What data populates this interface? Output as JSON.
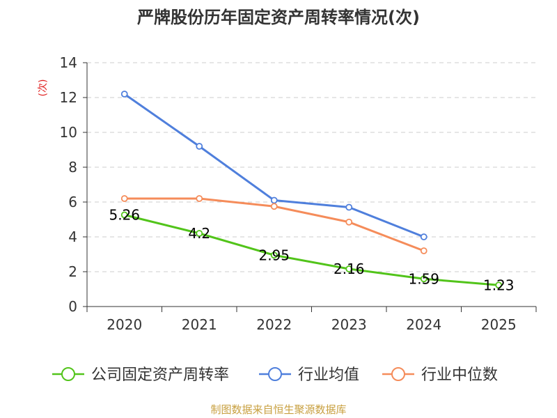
{
  "chart_data": {
    "type": "line",
    "title": "严牌股份历年固定资产周转率情况(次)",
    "ylabel": "(次)",
    "xlabel": "",
    "ylim": [
      0,
      14
    ],
    "yticks": [
      0,
      2,
      4,
      6,
      8,
      10,
      12,
      14
    ],
    "grid": true,
    "categories": [
      "2020",
      "2021",
      "2022",
      "2023",
      "2024",
      "2025"
    ],
    "series": [
      {
        "name": "公司固定资产周转率",
        "color": "#52c41a",
        "values": [
          5.26,
          4.2,
          2.95,
          2.16,
          1.59,
          1.23
        ],
        "labels": [
          "5.26",
          "4.2",
          "2.95",
          "2.16",
          "1.59",
          "1.23"
        ]
      },
      {
        "name": "行业均值",
        "color": "#4f7fdc",
        "values": [
          12.2,
          9.2,
          6.1,
          5.7,
          4.0,
          null
        ]
      },
      {
        "name": "行业中位数",
        "color": "#f58c5a",
        "values": [
          6.2,
          6.2,
          5.75,
          4.85,
          3.2,
          null
        ]
      }
    ],
    "source": "制图数据来自恒生聚源数据库"
  }
}
